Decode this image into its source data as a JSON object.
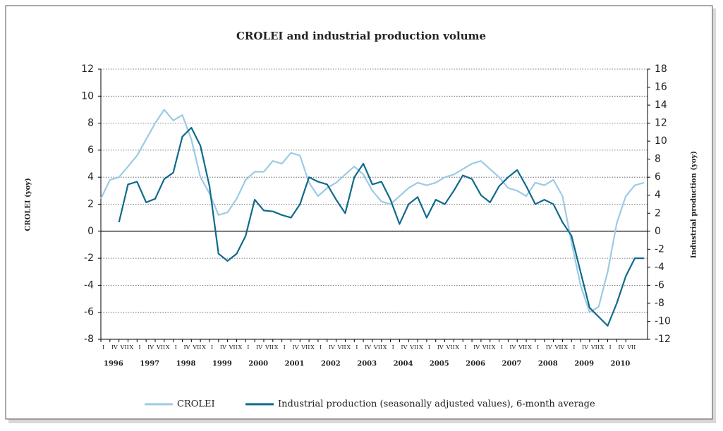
{
  "chart_data": {
    "type": "line",
    "title": "CROLEI and industrial production volume",
    "ylabel": "CROLEI (yoy)",
    "y2label": "Industrial production (yoy)",
    "x": [
      1996,
      1996.25,
      1996.5,
      1996.75,
      1997,
      1997.25,
      1997.5,
      1997.75,
      1998,
      1998.25,
      1998.5,
      1998.75,
      1999,
      1999.25,
      1999.5,
      1999.75,
      2000,
      2000.25,
      2000.5,
      2000.75,
      2001,
      2001.25,
      2001.5,
      2001.75,
      2002,
      2002.25,
      2002.5,
      2002.75,
      2003,
      2003.25,
      2003.5,
      2003.75,
      2004,
      2004.25,
      2004.5,
      2004.75,
      2005,
      2005.25,
      2005.5,
      2005.75,
      2006,
      2006.25,
      2006.5,
      2006.75,
      2007,
      2007.25,
      2007.5,
      2007.75,
      2008,
      2008.25,
      2008.5,
      2008.75,
      2009,
      2009.25,
      2009.5,
      2009.75,
      2010,
      2010.25,
      2010.5,
      2010.75,
      2011
    ],
    "series": [
      {
        "name": "CROLEI",
        "color": "#9ccbe4",
        "values": [
          2.4,
          3.8,
          4.0,
          4.8,
          5.6,
          6.8,
          8.0,
          9.0,
          8.2,
          8.6,
          6.8,
          4.0,
          2.8,
          1.2,
          1.4,
          2.4,
          3.8,
          4.4,
          4.4,
          5.2,
          5.0,
          5.8,
          5.6,
          3.6,
          2.6,
          3.2,
          3.6,
          4.2,
          4.8,
          4.2,
          3.0,
          2.2,
          2.0,
          2.6,
          3.2,
          3.6,
          3.4,
          3.6,
          4.0,
          4.2,
          4.6,
          5.0,
          5.2,
          4.6,
          4.0,
          3.2,
          3.0,
          2.6,
          3.6,
          3.4,
          3.8,
          2.6,
          -0.8,
          -4.0,
          -6.0,
          -5.6,
          -3.0,
          0.6,
          2.6,
          3.4,
          3.6
        ]
      },
      {
        "name": "Industrial production (seasonally adjusted values), 6-month average",
        "color": "#0f6a8c",
        "axis": "y2",
        "values": [
          null,
          null,
          1.0,
          5.2,
          5.5,
          3.2,
          3.6,
          5.8,
          6.5,
          10.5,
          11.5,
          9.5,
          5.0,
          -2.5,
          -3.3,
          -2.5,
          -0.5,
          3.5,
          2.3,
          2.2,
          1.8,
          1.5,
          3.0,
          6.0,
          5.5,
          5.2,
          3.5,
          2.0,
          6.0,
          7.5,
          5.2,
          5.5,
          3.5,
          0.8,
          3.0,
          3.8,
          1.5,
          3.5,
          3.0,
          4.5,
          6.2,
          5.8,
          4.0,
          3.2,
          5.0,
          6.0,
          6.8,
          5.0,
          3.0,
          3.5,
          3.0,
          1.0,
          -0.5,
          -4.5,
          -8.5,
          -9.5,
          -10.5,
          -8.0,
          -5.0,
          -3.0,
          -3.0
        ]
      }
    ],
    "xlim": [
      1996,
      2011.1
    ],
    "xticks": [
      {
        "value": 1996,
        "label": "I"
      },
      {
        "value": 1996.25,
        "label": "IV"
      },
      {
        "value": 1996.5,
        "label": "VII"
      },
      {
        "value": 1996.75,
        "label": "X"
      },
      {
        "value": 1997,
        "label": "I"
      },
      {
        "value": 1997.25,
        "label": "IV"
      },
      {
        "value": 1997.5,
        "label": "VII"
      },
      {
        "value": 1997.75,
        "label": "X"
      },
      {
        "value": 1998,
        "label": "I"
      },
      {
        "value": 1998.25,
        "label": "IV"
      },
      {
        "value": 1998.5,
        "label": "VII"
      },
      {
        "value": 1998.75,
        "label": "X"
      },
      {
        "value": 1999,
        "label": "I"
      },
      {
        "value": 1999.25,
        "label": "IV"
      },
      {
        "value": 1999.5,
        "label": "VII"
      },
      {
        "value": 1999.75,
        "label": "X"
      },
      {
        "value": 2000,
        "label": "I"
      },
      {
        "value": 2000.25,
        "label": "IV"
      },
      {
        "value": 2000.5,
        "label": "VII"
      },
      {
        "value": 2000.75,
        "label": "X"
      },
      {
        "value": 2001,
        "label": "I"
      },
      {
        "value": 2001.25,
        "label": "IV"
      },
      {
        "value": 2001.5,
        "label": "VII"
      },
      {
        "value": 2001.75,
        "label": "X"
      },
      {
        "value": 2002,
        "label": "I"
      },
      {
        "value": 2002.25,
        "label": "IV"
      },
      {
        "value": 2002.5,
        "label": "VII"
      },
      {
        "value": 2002.75,
        "label": "X"
      },
      {
        "value": 2003,
        "label": "I"
      },
      {
        "value": 2003.25,
        "label": "IV"
      },
      {
        "value": 2003.5,
        "label": "VII"
      },
      {
        "value": 2003.75,
        "label": "X"
      },
      {
        "value": 2004,
        "label": "I"
      },
      {
        "value": 2004.25,
        "label": "IV"
      },
      {
        "value": 2004.5,
        "label": "VII"
      },
      {
        "value": 2004.75,
        "label": "X"
      },
      {
        "value": 2005,
        "label": "I"
      },
      {
        "value": 2005.25,
        "label": "IV"
      },
      {
        "value": 2005.5,
        "label": "VII"
      },
      {
        "value": 2005.75,
        "label": "X"
      },
      {
        "value": 2006,
        "label": "I"
      },
      {
        "value": 2006.25,
        "label": "IV"
      },
      {
        "value": 2006.5,
        "label": "VII"
      },
      {
        "value": 2006.75,
        "label": "X"
      },
      {
        "value": 2007,
        "label": "I"
      },
      {
        "value": 2007.25,
        "label": "IV"
      },
      {
        "value": 2007.5,
        "label": "VII"
      },
      {
        "value": 2007.75,
        "label": "X"
      },
      {
        "value": 2008,
        "label": "I"
      },
      {
        "value": 2008.25,
        "label": "IV"
      },
      {
        "value": 2008.5,
        "label": "VII"
      },
      {
        "value": 2008.75,
        "label": "X"
      },
      {
        "value": 2009,
        "label": "I"
      },
      {
        "value": 2009.25,
        "label": "IV"
      },
      {
        "value": 2009.5,
        "label": "VII"
      },
      {
        "value": 2009.75,
        "label": "X"
      },
      {
        "value": 2010,
        "label": "I"
      },
      {
        "value": 2010.25,
        "label": "IV"
      },
      {
        "value": 2010.5,
        "label": "VII"
      }
    ],
    "year_ticks": [
      1996,
      1997,
      1998,
      1999,
      2000,
      2001,
      2002,
      2003,
      2004,
      2005,
      2006,
      2007,
      2008,
      2009,
      2010
    ],
    "ylim": [
      -8,
      12
    ],
    "yticks": [
      -8,
      -6,
      -4,
      -2,
      0,
      2,
      4,
      6,
      8,
      10,
      12
    ],
    "y2lim": [
      -12,
      18
    ],
    "y2ticks": [
      -12,
      -10,
      -8,
      -6,
      -4,
      -2,
      0,
      2,
      4,
      6,
      8,
      10,
      12,
      14,
      16,
      18
    ],
    "grid": true
  }
}
